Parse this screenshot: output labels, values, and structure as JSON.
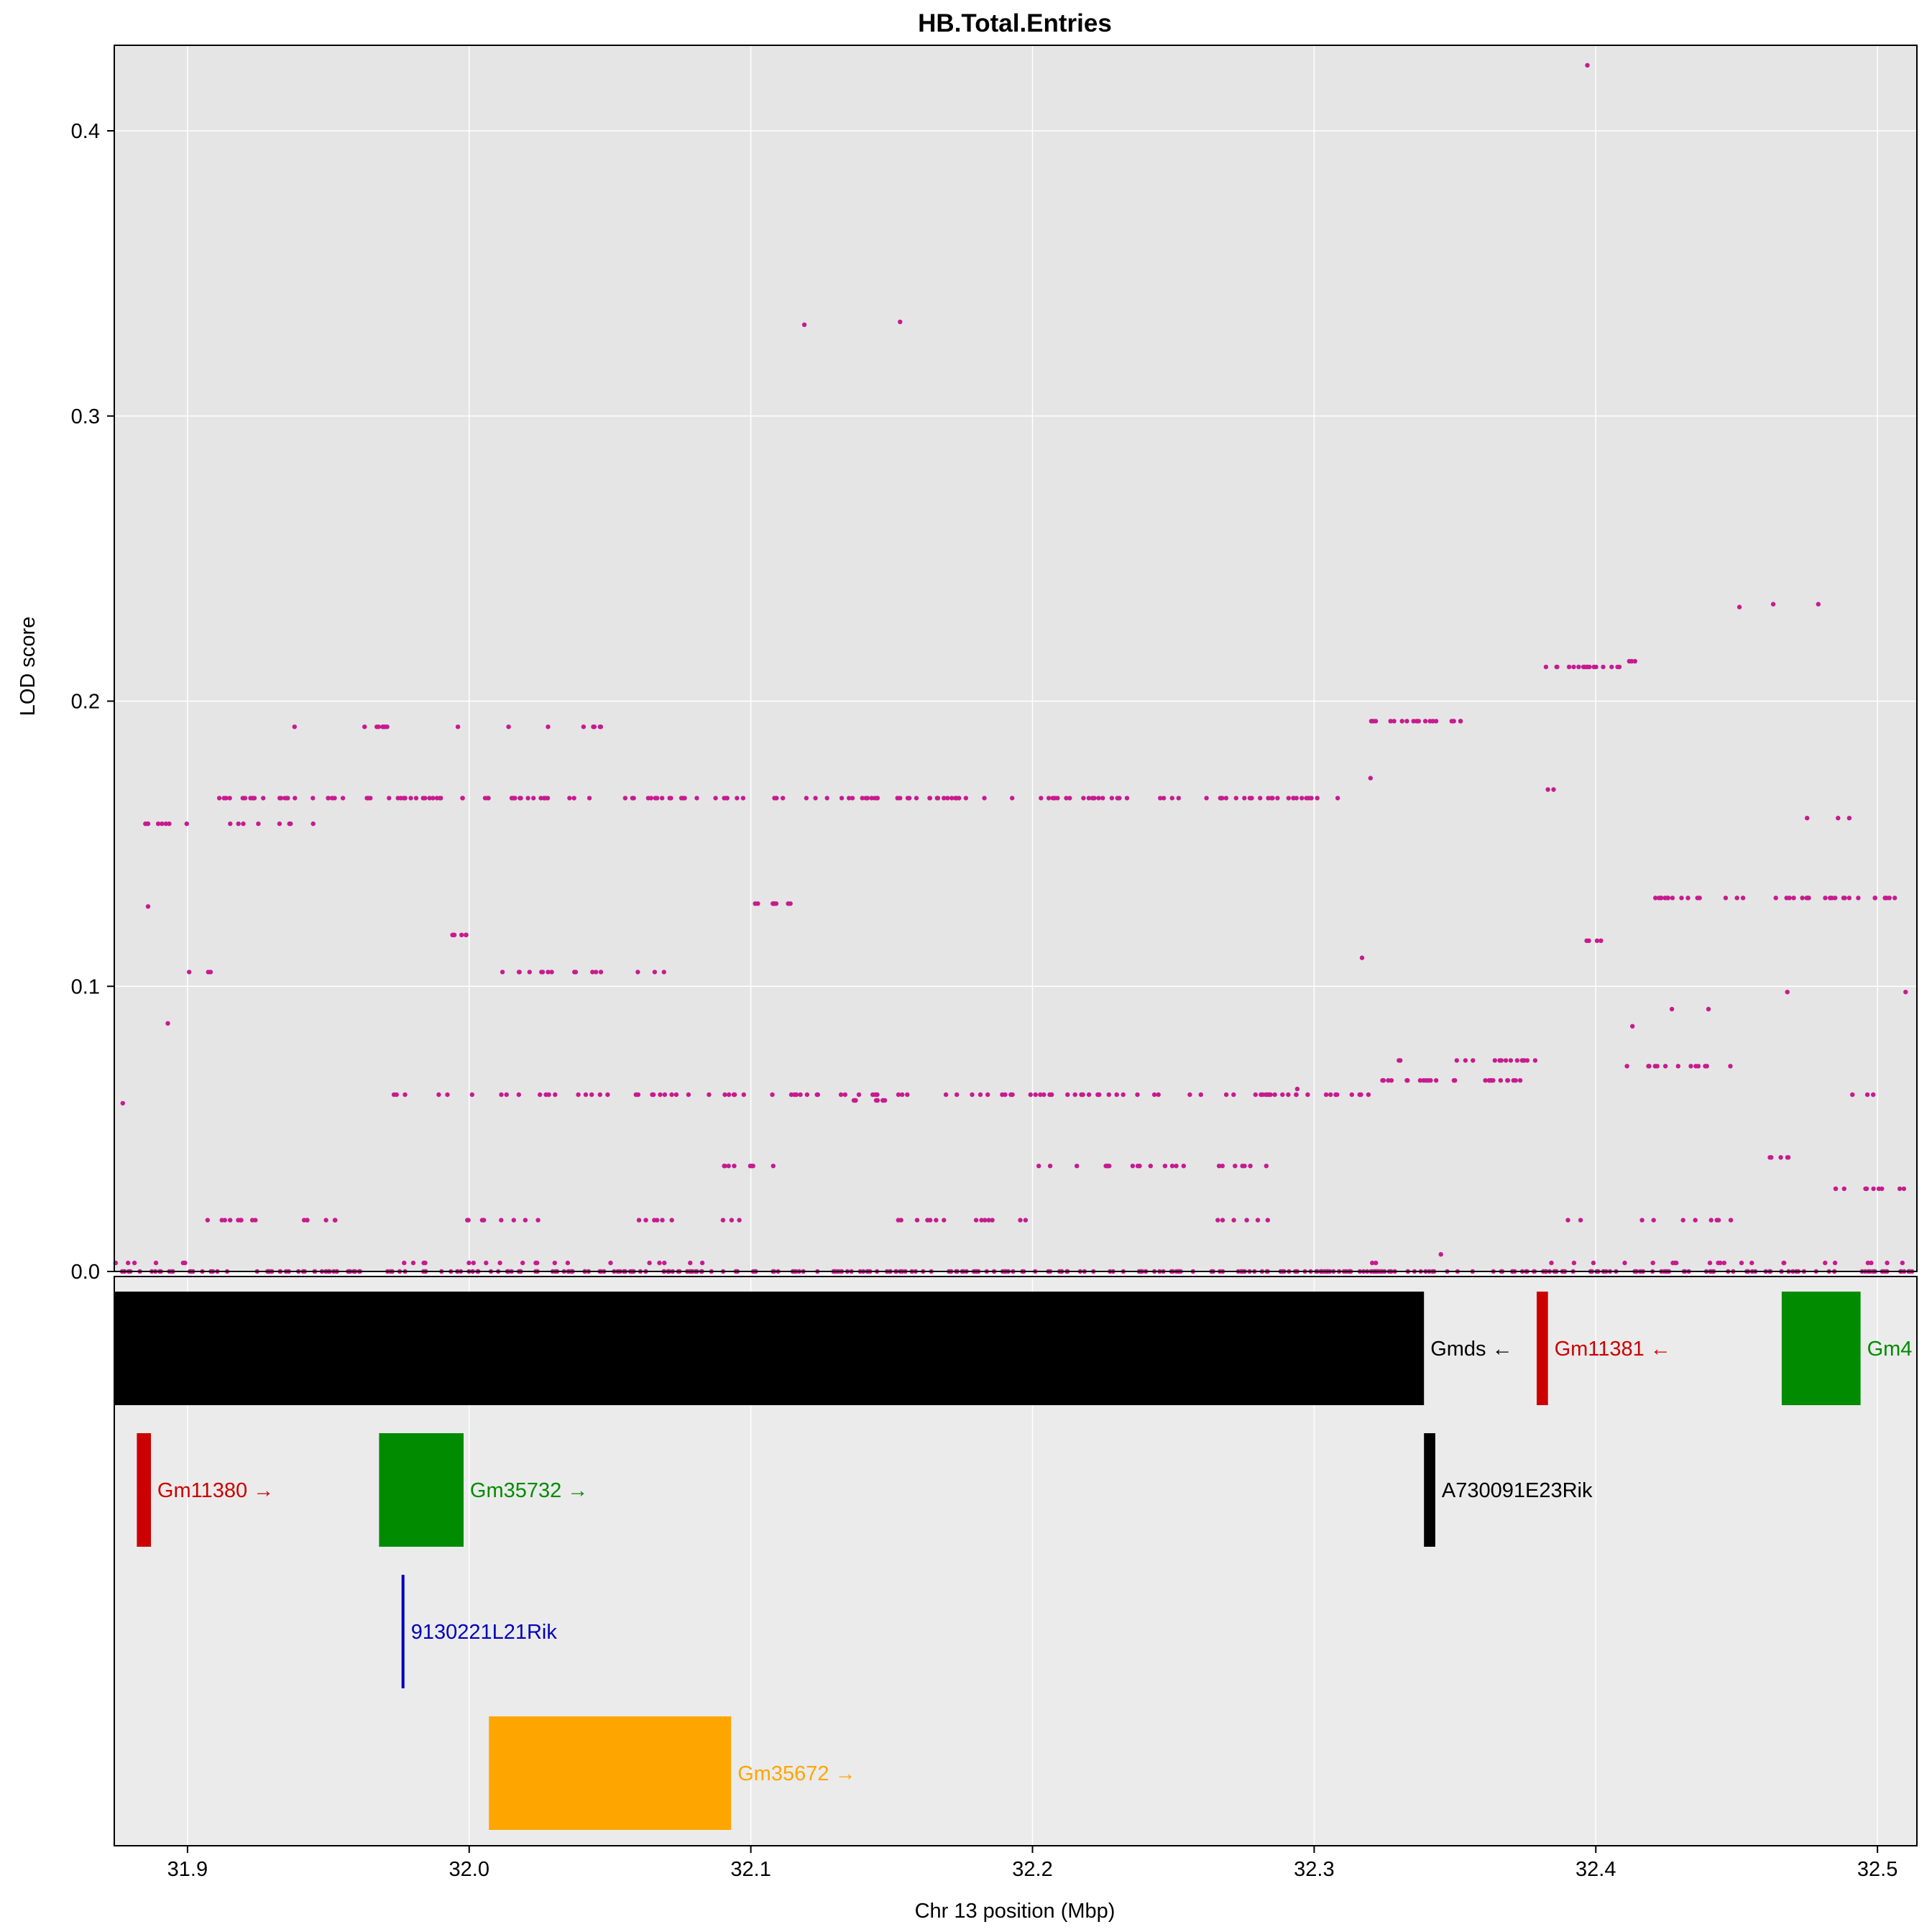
{
  "chart_data": {
    "type": "scatter",
    "title": "HB.Total.Entries",
    "xlabel": "Chr 13 position (Mbp)",
    "ylabel": "LOD score",
    "xlim": [
      31.874,
      32.514
    ],
    "ylim": [
      0,
      0.43
    ],
    "x_ticks": [
      "31.9",
      "32.0",
      "32.1",
      "32.2",
      "32.3",
      "32.4",
      "32.5"
    ],
    "y_ticks": [
      "0.0",
      "0.1",
      "0.2",
      "0.3",
      "0.4"
    ],
    "grid": true,
    "point_color": "#c71b8e",
    "panel_background": "#e5e5e5",
    "gene_panel_background": "#ebebeb",
    "series": [
      {
        "values_description_free": true,
        "bands": [
          {
            "y": 0.0,
            "segments": [
              [
                31.874,
                32.514
              ]
            ],
            "density": 0.9
          },
          {
            "y": 0.003,
            "segments": [
              [
                31.874,
                31.91
              ],
              [
                31.975,
                32.09
              ],
              [
                32.32,
                32.33
              ],
              [
                32.38,
                32.514
              ]
            ],
            "density": 0.25
          },
          {
            "y": 0.018,
            "segments": [
              [
                31.885,
                31.955
              ],
              [
                31.995,
                32.03
              ],
              [
                32.06,
                32.1
              ],
              [
                32.14,
                32.2
              ],
              [
                32.265,
                32.29
              ],
              [
                32.385,
                32.395
              ],
              [
                32.415,
                32.45
              ]
            ],
            "density": 0.35
          },
          {
            "y": 0.029,
            "segments": [
              [
                32.485,
                32.514
              ]
            ],
            "density": 0.6
          },
          {
            "y": 0.037,
            "segments": [
              [
                32.09,
                32.12
              ],
              [
                32.2,
                32.285
              ]
            ],
            "density": 0.4
          },
          {
            "y": 0.04,
            "segments": [
              [
                32.46,
                32.47
              ]
            ],
            "density": 0.7
          },
          {
            "y": 0.06,
            "segments": [
              [
                32.135,
                32.15
              ]
            ],
            "density": 0.8
          },
          {
            "y": 0.062,
            "segments": [
              [
                31.97,
                32.32
              ],
              [
                32.49,
                32.5
              ]
            ],
            "density": 0.45
          },
          {
            "y": 0.067,
            "segments": [
              [
                32.32,
                32.375
              ]
            ],
            "density": 0.7
          },
          {
            "y": 0.072,
            "segments": [
              [
                32.41,
                32.45
              ]
            ],
            "density": 0.5
          },
          {
            "y": 0.074,
            "segments": [
              [
                32.33,
                32.38
              ]
            ],
            "density": 0.5
          },
          {
            "y": 0.105,
            "segments": [
              [
                31.9,
                31.915
              ],
              [
                32.01,
                32.08
              ]
            ],
            "density": 0.35
          },
          {
            "y": 0.116,
            "segments": [
              [
                32.395,
                32.405
              ]
            ],
            "density": 0.6
          },
          {
            "y": 0.118,
            "segments": [
              [
                31.99,
                32.005
              ]
            ],
            "density": 0.7
          },
          {
            "y": 0.129,
            "segments": [
              [
                32.1,
                32.115
              ]
            ],
            "density": 0.8
          },
          {
            "y": 0.131,
            "segments": [
              [
                32.42,
                32.514
              ]
            ],
            "density": 0.6
          },
          {
            "y": 0.157,
            "segments": [
              [
                31.885,
                31.955
              ]
            ],
            "density": 0.35
          },
          {
            "y": 0.166,
            "segments": [
              [
                31.905,
                32.31
              ]
            ],
            "density": 0.6
          },
          {
            "y": 0.191,
            "segments": [
              [
                31.96,
                31.975
              ],
              [
                32.04,
                32.05
              ]
            ],
            "density": 0.8
          },
          {
            "y": 0.193,
            "segments": [
              [
                32.32,
                32.355
              ]
            ],
            "density": 0.8
          },
          {
            "y": 0.212,
            "segments": [
              [
                32.38,
                32.41
              ]
            ],
            "density": 0.85
          },
          {
            "y": 0.214,
            "segments": [
              [
                32.41,
                32.415
              ]
            ],
            "density": 0.9
          }
        ],
        "points": [
          [
            32.119,
            0.332
          ],
          [
            32.153,
            0.333
          ],
          [
            32.397,
            0.423
          ],
          [
            32.451,
            0.233
          ],
          [
            32.463,
            0.234
          ],
          [
            32.479,
            0.234
          ],
          [
            32.475,
            0.159
          ],
          [
            32.486,
            0.159
          ],
          [
            32.49,
            0.159
          ],
          [
            32.468,
            0.098
          ],
          [
            32.51,
            0.098
          ],
          [
            31.877,
            0.059
          ],
          [
            31.893,
            0.087
          ],
          [
            31.886,
            0.128
          ],
          [
            31.938,
            0.191
          ],
          [
            31.996,
            0.191
          ],
          [
            32.014,
            0.191
          ],
          [
            32.028,
            0.191
          ],
          [
            32.383,
            0.169
          ],
          [
            32.385,
            0.169
          ],
          [
            32.413,
            0.086
          ],
          [
            32.427,
            0.092
          ],
          [
            32.44,
            0.092
          ],
          [
            32.317,
            0.11
          ],
          [
            32.294,
            0.064
          ],
          [
            32.32,
            0.173
          ],
          [
            32.345,
            0.006
          ]
        ]
      }
    ],
    "genes": [
      {
        "name": "Gmds",
        "strand": "←",
        "start": 31.874,
        "end": 32.339,
        "row": 0,
        "color": "#000000"
      },
      {
        "name": "Gm11381",
        "strand": "←",
        "start": 32.379,
        "end": 32.383,
        "row": 0,
        "color": "#cc0000"
      },
      {
        "name": "Gm4",
        "strand": "",
        "start": 32.466,
        "end": 32.494,
        "row": 0,
        "color": "#008b00"
      },
      {
        "name": "Gm11380",
        "strand": "→",
        "start": 31.882,
        "end": 31.887,
        "row": 1,
        "color": "#cc0000"
      },
      {
        "name": "Gm35732",
        "strand": "→",
        "start": 31.968,
        "end": 31.998,
        "row": 1,
        "color": "#008b00"
      },
      {
        "name": "A730091E23Rik",
        "strand": "",
        "start": 32.339,
        "end": 32.343,
        "row": 1,
        "color": "#000000"
      },
      {
        "name": "9130221L21Rik",
        "strand": "",
        "start": 31.976,
        "end": 31.977,
        "row": 2,
        "color": "#0000bb"
      },
      {
        "name": "Gm35672",
        "strand": "→",
        "start": 32.007,
        "end": 32.093,
        "row": 3,
        "color": "#ffa500"
      }
    ]
  }
}
